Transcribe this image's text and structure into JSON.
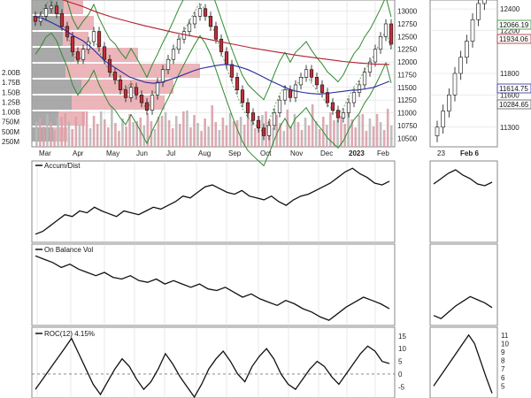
{
  "colors": {
    "panel_border": "#888888",
    "grid": "#d8d8d8",
    "price_line": "#111111",
    "up_candle": "#ffffff",
    "down_candle": "#c0303a",
    "ma_short": "#2a2aa0",
    "ma_long": "#b02030",
    "band": "#2f8a2f",
    "volume_up": "#d9a0a8",
    "volume_down": "#b8b8b8",
    "vbp_gray": "#9a9a9a",
    "vbp_red": "#e8a8ae"
  },
  "chart_data": [
    {
      "type": "line",
      "panel": "price",
      "x_labels": [
        "Mar",
        "Apr",
        "May",
        "Jun",
        "Jul",
        "Aug",
        "Sep",
        "Oct",
        "Nov",
        "Dec",
        "2023",
        "Feb"
      ],
      "y_ticks": [
        "13000",
        "12750",
        "12500",
        "12250",
        "12000",
        "11750",
        "11500",
        "11250",
        "11000",
        "10750",
        "10500"
      ],
      "volume_ticks": [
        "2.00B",
        "1.75B",
        "1.50B",
        "1.25B",
        "1.00B",
        "750M",
        "500M",
        "250M"
      ],
      "close": [
        12800,
        12900,
        13050,
        13100,
        12950,
        12700,
        12500,
        12200,
        12050,
        12250,
        12400,
        12600,
        12300,
        12050,
        11800,
        11650,
        11450,
        11300,
        11500,
        11350,
        11200,
        11050,
        11350,
        11600,
        11850,
        12050,
        12250,
        12450,
        12600,
        12750,
        12900,
        13050,
        12900,
        12700,
        12450,
        12200,
        11950,
        11700,
        11450,
        11200,
        11000,
        10850,
        10700,
        10550,
        10750,
        11000,
        11250,
        11450,
        11300,
        11550,
        11700,
        11850,
        11700,
        11550,
        11400,
        11200,
        11050,
        10900,
        11000,
        11200,
        11400,
        11550,
        11800,
        12000,
        12250,
        12500,
        12750,
        12350
      ],
      "ma_short": [
        12900,
        12850,
        12780,
        12700,
        12600,
        12500,
        12420,
        12300,
        12150,
        12000,
        11900,
        11800,
        11700,
        11650,
        11600,
        11580,
        11600,
        11650,
        11700,
        11760,
        11820,
        11870,
        11900,
        11930,
        11950,
        11940,
        11900,
        11850,
        11780,
        11700,
        11620,
        11550,
        11480,
        11430,
        11400,
        11380,
        11370,
        11380,
        11400,
        11420,
        11440,
        11450,
        11470,
        11500,
        11560,
        11620
      ],
      "ma_long": [
        13400,
        13300,
        13200,
        13100,
        12980,
        12880,
        12800,
        12720,
        12650,
        12580,
        12520,
        12460,
        12400,
        12340,
        12280,
        12230,
        12180,
        12130,
        12090,
        12050,
        12010,
        11980,
        11960,
        11950
      ],
      "ylim": [
        10400,
        13150
      ]
    },
    {
      "type": "line",
      "panel": "accum_dist",
      "label": "Accum/Dist",
      "values": [
        5,
        8,
        14,
        20,
        26,
        24,
        30,
        28,
        34,
        30,
        27,
        24,
        30,
        28,
        26,
        30,
        34,
        32,
        36,
        40,
        46,
        44,
        50,
        56,
        58,
        54,
        50,
        48,
        52,
        46,
        44,
        42,
        46,
        40,
        36,
        42,
        46,
        48,
        52,
        56,
        60,
        66,
        72,
        76,
        70,
        66,
        60,
        58,
        62
      ],
      "ylim": [
        0,
        80
      ]
    },
    {
      "type": "line",
      "panel": "obv",
      "label": "On Balance Vol",
      "values": [
        80,
        76,
        72,
        66,
        70,
        64,
        60,
        56,
        60,
        54,
        52,
        56,
        50,
        48,
        52,
        46,
        50,
        46,
        42,
        46,
        40,
        38,
        42,
        36,
        30,
        34,
        28,
        24,
        20,
        26,
        22,
        16,
        12,
        6,
        2,
        10,
        18,
        24,
        30,
        26,
        22,
        16
      ],
      "ylim": [
        0,
        90
      ]
    },
    {
      "type": "line",
      "panel": "roc",
      "label": "ROC(12) 4.15%",
      "y_ticks": [
        "15",
        "10",
        "5",
        "0",
        "-5"
      ],
      "values": [
        -6,
        -2,
        2,
        6,
        10,
        14,
        8,
        2,
        -4,
        -8,
        -3,
        2,
        6,
        3,
        -2,
        -6,
        -3,
        2,
        8,
        4,
        -1,
        -5,
        -9,
        -4,
        2,
        6,
        9,
        5,
        0,
        -3,
        3,
        7,
        10,
        6,
        0,
        -4,
        -6,
        -2,
        2,
        5,
        3,
        -1,
        -4,
        0,
        4,
        8,
        11,
        9,
        5,
        4.15
      ],
      "ylim": [
        -8,
        17
      ]
    },
    {
      "type": "line",
      "panel": "inset_price",
      "x_labels": [
        "23",
        "Feb 6"
      ],
      "y_ticks": [
        "12400",
        "12200",
        "11800",
        "11600",
        "11300"
      ],
      "tags": [
        "12066.19",
        "11934.06",
        "11614.75",
        "10284.65"
      ],
      "close": [
        11300,
        11450,
        11600,
        11800,
        11950,
        12100,
        12300,
        12450,
        12600,
        12700
      ],
      "ylim": [
        11150,
        12450
      ]
    },
    {
      "type": "line",
      "panel": "inset_roc",
      "y_ticks": [
        "11",
        "10",
        "9",
        "8",
        "7",
        "6",
        "5"
      ],
      "values": [
        5,
        6,
        7,
        8,
        9,
        10,
        11,
        10,
        8,
        6,
        4.15
      ],
      "ylim": [
        4,
        11.5
      ]
    }
  ]
}
